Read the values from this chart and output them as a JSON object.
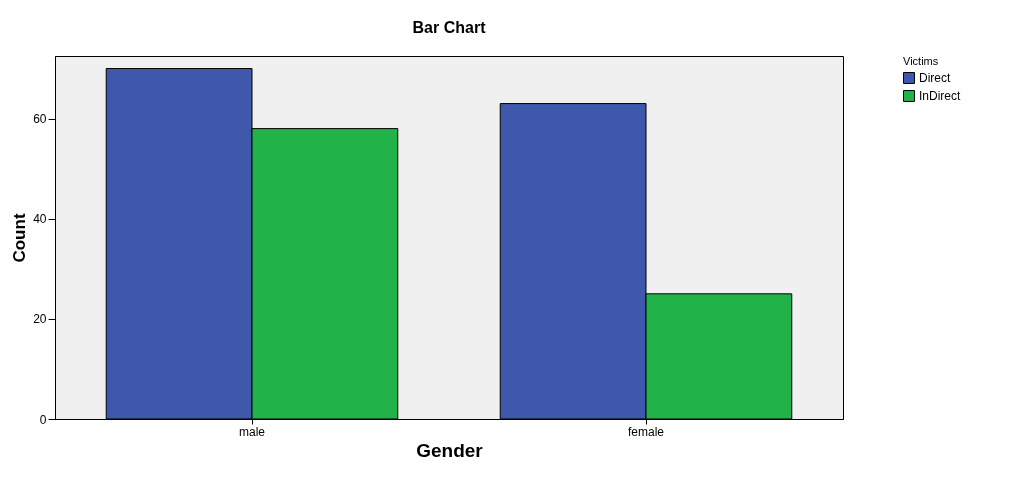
{
  "chart_data": {
    "type": "bar",
    "title": "Bar Chart",
    "xlabel": "Gender",
    "ylabel": "Count",
    "legend_title": "Victims",
    "categories": [
      "male",
      "female"
    ],
    "series": [
      {
        "name": "Direct",
        "color": "#3e58ac",
        "values": [
          70,
          63
        ]
      },
      {
        "name": "InDirect",
        "color": "#22b24a",
        "values": [
          58,
          25
        ]
      }
    ],
    "ylim": [
      0,
      72.5
    ],
    "yticks": [
      0,
      20,
      40,
      60
    ],
    "grid": false,
    "legend": "top right"
  }
}
